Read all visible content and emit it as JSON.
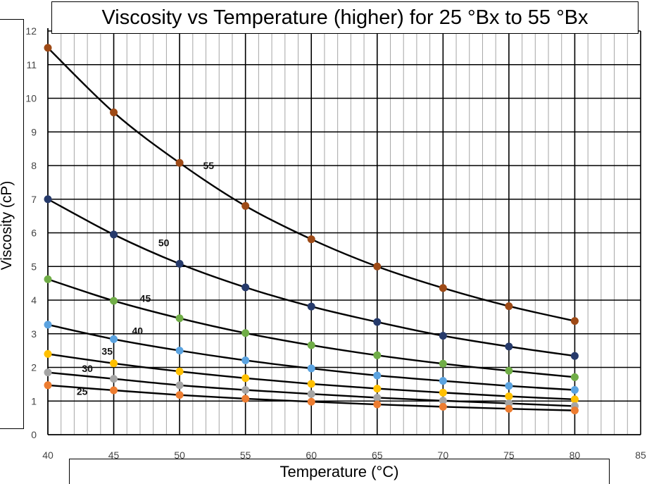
{
  "chart_data": {
    "type": "line",
    "title": "Viscosity vs Temperature (higher) for 25 °Bx to 55 °Bx",
    "xlabel": "Temperature (°C)",
    "ylabel": "Viscosity (cP)",
    "xlim": [
      40,
      85
    ],
    "ylim": [
      0,
      12
    ],
    "x_ticks": [
      "40",
      "45",
      "50",
      "55",
      "60",
      "65",
      "70",
      "75",
      "80",
      "85"
    ],
    "y_ticks": [
      "0",
      "1",
      "2",
      "3",
      "4",
      "5",
      "6",
      "7",
      "8",
      "9",
      "10",
      "11",
      "12"
    ],
    "grid": true,
    "x": [
      40,
      45,
      50,
      55,
      60,
      65,
      70,
      75,
      80
    ],
    "series": [
      {
        "name": "55",
        "color": "#9e4a16",
        "values": [
          11.5,
          9.58,
          8.08,
          6.8,
          5.81,
          5.0,
          4.36,
          3.82,
          3.38
        ]
      },
      {
        "name": "50",
        "color": "#263a6b",
        "values": [
          7.0,
          5.95,
          5.08,
          4.38,
          3.81,
          3.35,
          2.94,
          2.62,
          2.34
        ]
      },
      {
        "name": "45",
        "color": "#70ad47",
        "values": [
          4.62,
          3.98,
          3.46,
          3.02,
          2.66,
          2.36,
          2.11,
          1.9,
          1.71
        ]
      },
      {
        "name": "40",
        "color": "#5ba3e0",
        "values": [
          3.27,
          2.84,
          2.5,
          2.21,
          1.97,
          1.76,
          1.6,
          1.45,
          1.33
        ]
      },
      {
        "name": "35",
        "color": "#ffc000",
        "values": [
          2.4,
          2.12,
          1.88,
          1.68,
          1.51,
          1.37,
          1.25,
          1.14,
          1.05
        ]
      },
      {
        "name": "30",
        "color": "#a5a5a5",
        "values": [
          1.85,
          1.66,
          1.47,
          1.33,
          1.21,
          1.1,
          1.01,
          0.93,
          0.85
        ]
      },
      {
        "name": "25",
        "color": "#ed7d31",
        "values": [
          1.47,
          1.32,
          1.18,
          1.07,
          0.98,
          0.9,
          0.83,
          0.77,
          0.72
        ]
      }
    ],
    "curve_labels": [
      {
        "text": "55",
        "x": 52.2,
        "y": 7.9
      },
      {
        "text": "50",
        "x": 48.8,
        "y": 5.6
      },
      {
        "text": "45",
        "x": 47.4,
        "y": 3.95
      },
      {
        "text": "40",
        "x": 46.8,
        "y": 2.98
      },
      {
        "text": "35",
        "x": 44.5,
        "y": 2.38
      },
      {
        "text": "30",
        "x": 43.0,
        "y": 1.86
      },
      {
        "text": "25",
        "x": 42.6,
        "y": 1.18
      }
    ]
  }
}
